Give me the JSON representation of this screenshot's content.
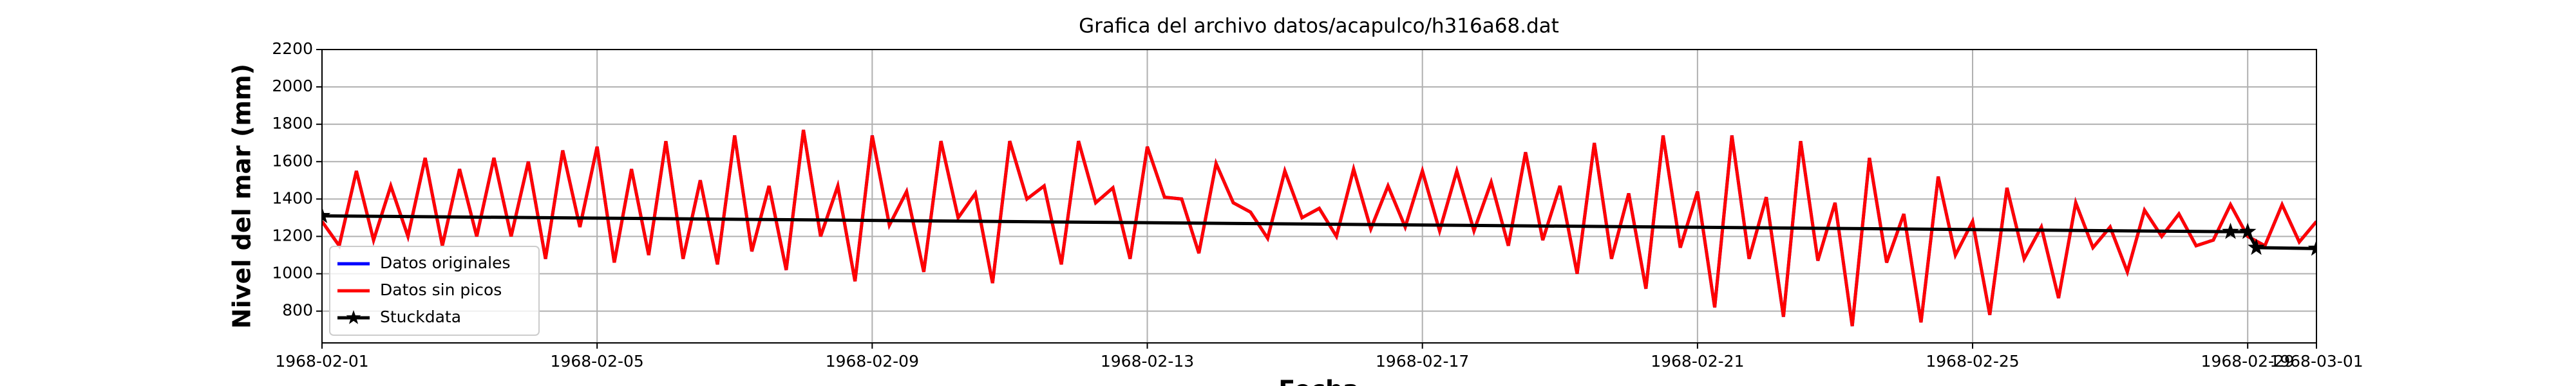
{
  "chart_data": {
    "type": "line",
    "title": "Grafica del archivo datos/acapulco/h316a68.dat",
    "ylabel": "Nivel del mar (mm)",
    "xlabel": "Fecha",
    "xlim": [
      "1968-02-01",
      "1968-03-01"
    ],
    "xticks": [
      "1968-02-01",
      "1968-02-05",
      "1968-02-09",
      "1968-02-13",
      "1968-02-17",
      "1968-02-21",
      "1968-02-25",
      "1968-02-29",
      "1968-03-01"
    ],
    "ylim": [
      630,
      2200
    ],
    "yticks": [
      800,
      1000,
      1200,
      1400,
      1600,
      1800,
      2000,
      2200
    ],
    "grid": true,
    "legend": "lower left",
    "x": [
      "1968-02-01 00:00",
      "1968-02-01 06:00",
      "1968-02-01 12:00",
      "1968-02-01 18:00",
      "1968-02-02 00:00",
      "1968-02-02 06:00",
      "1968-02-02 12:00",
      "1968-02-02 18:00",
      "1968-02-03 00:00",
      "1968-02-03 06:00",
      "1968-02-03 12:00",
      "1968-02-03 18:00",
      "1968-02-04 00:00",
      "1968-02-04 06:00",
      "1968-02-04 12:00",
      "1968-02-04 18:00",
      "1968-02-05 00:00",
      "1968-02-05 06:00",
      "1968-02-05 12:00",
      "1968-02-05 18:00",
      "1968-02-06 00:00",
      "1968-02-06 06:00",
      "1968-02-06 12:00",
      "1968-02-06 18:00",
      "1968-02-07 00:00",
      "1968-02-07 06:00",
      "1968-02-07 12:00",
      "1968-02-07 18:00",
      "1968-02-08 00:00",
      "1968-02-08 06:00",
      "1968-02-08 12:00",
      "1968-02-08 18:00",
      "1968-02-09 00:00",
      "1968-02-09 06:00",
      "1968-02-09 12:00",
      "1968-02-09 18:00",
      "1968-02-10 00:00",
      "1968-02-10 06:00",
      "1968-02-10 12:00",
      "1968-02-10 18:00",
      "1968-02-11 00:00",
      "1968-02-11 06:00",
      "1968-02-11 12:00",
      "1968-02-11 18:00",
      "1968-02-12 00:00",
      "1968-02-12 06:00",
      "1968-02-12 12:00",
      "1968-02-12 18:00",
      "1968-02-13 00:00",
      "1968-02-13 06:00",
      "1968-02-13 12:00",
      "1968-02-13 18:00",
      "1968-02-14 00:00",
      "1968-02-14 06:00",
      "1968-02-14 12:00",
      "1968-02-14 18:00",
      "1968-02-15 00:00",
      "1968-02-15 06:00",
      "1968-02-15 12:00",
      "1968-02-15 18:00",
      "1968-02-16 00:00",
      "1968-02-16 06:00",
      "1968-02-16 12:00",
      "1968-02-16 18:00",
      "1968-02-17 00:00",
      "1968-02-17 06:00",
      "1968-02-17 12:00",
      "1968-02-17 18:00",
      "1968-02-18 00:00",
      "1968-02-18 06:00",
      "1968-02-18 12:00",
      "1968-02-18 18:00",
      "1968-02-19 00:00",
      "1968-02-19 06:00",
      "1968-02-19 12:00",
      "1968-02-19 18:00",
      "1968-02-20 00:00",
      "1968-02-20 06:00",
      "1968-02-20 12:00",
      "1968-02-20 18:00",
      "1968-02-21 00:00",
      "1968-02-21 06:00",
      "1968-02-21 12:00",
      "1968-02-21 18:00",
      "1968-02-22 00:00",
      "1968-02-22 06:00",
      "1968-02-22 12:00",
      "1968-02-22 18:00",
      "1968-02-23 00:00",
      "1968-02-23 06:00",
      "1968-02-23 12:00",
      "1968-02-23 18:00",
      "1968-02-24 00:00",
      "1968-02-24 06:00",
      "1968-02-24 12:00",
      "1968-02-24 18:00",
      "1968-02-25 00:00",
      "1968-02-25 06:00",
      "1968-02-25 12:00",
      "1968-02-25 18:00",
      "1968-02-26 00:00",
      "1968-02-26 06:00",
      "1968-02-26 12:00",
      "1968-02-26 18:00",
      "1968-02-27 00:00",
      "1968-02-27 06:00",
      "1968-02-27 12:00",
      "1968-02-27 18:00",
      "1968-02-28 00:00",
      "1968-02-28 06:00",
      "1968-02-28 12:00",
      "1968-02-28 18:00",
      "1968-02-29 00:00",
      "1968-02-29 06:00",
      "1968-02-29 12:00",
      "1968-02-29 18:00",
      "1968-03-01 00:00"
    ],
    "series": [
      {
        "name": "Datos originales",
        "color": "#0000ff",
        "values": [
          1280,
          1150,
          1550,
          1180,
          1470,
          1200,
          1620,
          1150,
          1560,
          1200,
          1620,
          1200,
          1600,
          1080,
          1660,
          1250,
          1680,
          1060,
          1560,
          1100,
          1710,
          1080,
          1500,
          1050,
          1740,
          1120,
          1470,
          1020,
          1770,
          1200,
          1470,
          960,
          1740,
          1260,
          1440,
          1010,
          1710,
          1300,
          1430,
          950,
          1710,
          1400,
          1470,
          1050,
          1710,
          1380,
          1460,
          1080,
          1680,
          1410,
          1400,
          1110,
          1590,
          1380,
          1330,
          1190,
          1550,
          1300,
          1350,
          1200,
          1560,
          1240,
          1470,
          1250,
          1550,
          1230,
          1550,
          1230,
          1490,
          1150,
          1650,
          1180,
          1470,
          1000,
          1700,
          1080,
          1430,
          920,
          1740,
          1140,
          1440,
          820,
          1740,
          1080,
          1410,
          770,
          1710,
          1070,
          1380,
          720,
          1620,
          1060,
          1320,
          740,
          1520,
          1100,
          1280,
          780,
          1460,
          1080,
          1250,
          870,
          1380,
          1140,
          1250,
          1010,
          1340,
          1200,
          1320,
          1150,
          1180,
          1370,
          1200,
          1150,
          1370,
          1170,
          1280
        ]
      },
      {
        "name": "Datos sin picos",
        "color": "#ff0000",
        "values": [
          1280,
          1150,
          1550,
          1180,
          1470,
          1200,
          1620,
          1150,
          1560,
          1200,
          1620,
          1200,
          1600,
          1080,
          1660,
          1250,
          1680,
          1060,
          1560,
          1100,
          1710,
          1080,
          1500,
          1050,
          1740,
          1120,
          1470,
          1020,
          1770,
          1200,
          1470,
          960,
          1740,
          1260,
          1440,
          1010,
          1710,
          1300,
          1430,
          950,
          1710,
          1400,
          1470,
          1050,
          1710,
          1380,
          1460,
          1080,
          1680,
          1410,
          1400,
          1110,
          1590,
          1380,
          1330,
          1190,
          1550,
          1300,
          1350,
          1200,
          1560,
          1240,
          1470,
          1250,
          1550,
          1230,
          1550,
          1230,
          1490,
          1150,
          1650,
          1180,
          1470,
          1000,
          1700,
          1080,
          1430,
          920,
          1740,
          1140,
          1440,
          820,
          1740,
          1080,
          1410,
          770,
          1710,
          1070,
          1380,
          720,
          1620,
          1060,
          1320,
          740,
          1520,
          1100,
          1280,
          780,
          1460,
          1080,
          1250,
          870,
          1380,
          1140,
          1250,
          1010,
          1340,
          1200,
          1320,
          1150,
          1180,
          1370,
          1200,
          1150,
          1370,
          1170,
          1280
        ]
      },
      {
        "name": "Stuckdata",
        "color": "#000000",
        "marker": "star",
        "x": [
          "1968-02-01 00:00",
          "1968-02-28 18:00",
          "1968-02-29 00:00",
          "1968-02-29 03:00",
          "1968-03-01 00:00"
        ],
        "values": [
          1310,
          1225,
          1225,
          1140,
          1135
        ]
      }
    ]
  }
}
